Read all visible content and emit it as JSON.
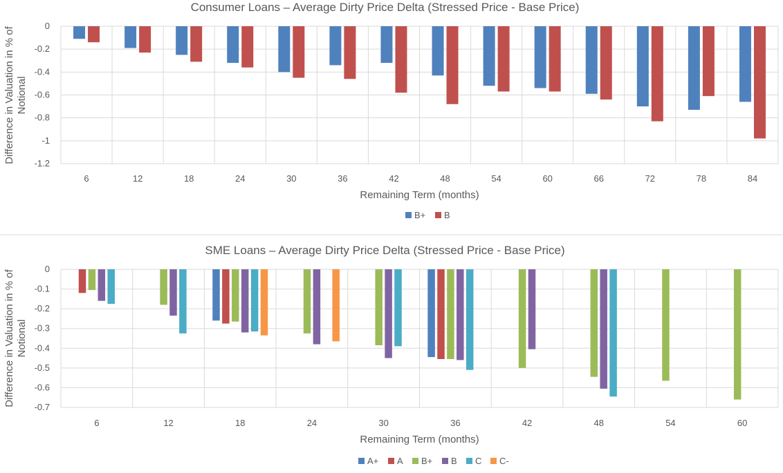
{
  "chart_data": [
    {
      "type": "bar",
      "title": "Consumer Loans – Average Dirty Price Delta (Stressed Price - Base Price)",
      "xlabel": "Remaining Term (months)",
      "ylabel": "Difference in Valuation in % of Notional",
      "ylabel_lines": [
        "Difference in Valuation in % of",
        "Notional"
      ],
      "ylim": [
        -1.2,
        0
      ],
      "yticks": [
        0,
        -0.2,
        -0.4,
        -0.6,
        -0.8,
        -1,
        -1.2
      ],
      "ytick_labels": [
        "0",
        "-0.2",
        "-0.4",
        "-0.6",
        "-0.8",
        "-1",
        "-1.2"
      ],
      "categories": [
        "6",
        "12",
        "18",
        "24",
        "30",
        "36",
        "42",
        "48",
        "54",
        "60",
        "66",
        "72",
        "78",
        "84"
      ],
      "legend_position": "bottom",
      "series": [
        {
          "name": "B+",
          "color": "#4f81bd",
          "values": [
            -0.11,
            -0.19,
            -0.25,
            -0.32,
            -0.4,
            -0.34,
            -0.32,
            -0.43,
            -0.52,
            -0.54,
            -0.59,
            -0.7,
            -0.73,
            -0.66
          ]
        },
        {
          "name": "B",
          "color": "#c0504d",
          "values": [
            -0.14,
            -0.23,
            -0.31,
            -0.36,
            -0.45,
            -0.46,
            -0.58,
            -0.68,
            -0.57,
            -0.57,
            -0.64,
            -0.83,
            -0.61,
            -0.98
          ]
        }
      ]
    },
    {
      "type": "bar",
      "title": "SME Loans – Average Dirty Price Delta (Stressed Price - Base Price)",
      "xlabel": "Remaining Term (months)",
      "ylabel": "Difference in Valuation in % of Notional",
      "ylabel_lines": [
        "Difference in Valuation in % of",
        "Notional"
      ],
      "ylim": [
        -0.7,
        0
      ],
      "yticks": [
        0,
        -0.1,
        -0.2,
        -0.3,
        -0.4,
        -0.5,
        -0.6,
        -0.7
      ],
      "ytick_labels": [
        "0",
        "-0.1",
        "-0.2",
        "-0.3",
        "-0.4",
        "-0.5",
        "-0.6",
        "-0.7"
      ],
      "categories": [
        "6",
        "12",
        "18",
        "24",
        "30",
        "36",
        "42",
        "48",
        "54",
        "60"
      ],
      "legend_position": "bottom",
      "series": [
        {
          "name": "A+",
          "color": "#4f81bd",
          "values": [
            null,
            null,
            -0.26,
            null,
            null,
            -0.445,
            null,
            null,
            null,
            null
          ]
        },
        {
          "name": "A",
          "color": "#c0504d",
          "values": [
            -0.12,
            null,
            -0.275,
            null,
            null,
            -0.455,
            null,
            null,
            null,
            null
          ]
        },
        {
          "name": "B+",
          "color": "#9bbb59",
          "values": [
            -0.105,
            -0.18,
            -0.265,
            -0.325,
            -0.385,
            -0.455,
            -0.5,
            -0.545,
            -0.565,
            -0.66
          ]
        },
        {
          "name": "B",
          "color": "#8064a2",
          "values": [
            -0.16,
            -0.235,
            -0.32,
            -0.38,
            -0.45,
            -0.46,
            -0.405,
            -0.605,
            null,
            null
          ]
        },
        {
          "name": "C",
          "color": "#4bacc6",
          "values": [
            -0.175,
            -0.325,
            -0.315,
            null,
            -0.39,
            -0.51,
            null,
            -0.645,
            null,
            null
          ]
        },
        {
          "name": "C-",
          "color": "#f79646",
          "values": [
            null,
            null,
            -0.335,
            -0.365,
            null,
            null,
            null,
            null,
            null,
            null
          ]
        }
      ]
    }
  ]
}
